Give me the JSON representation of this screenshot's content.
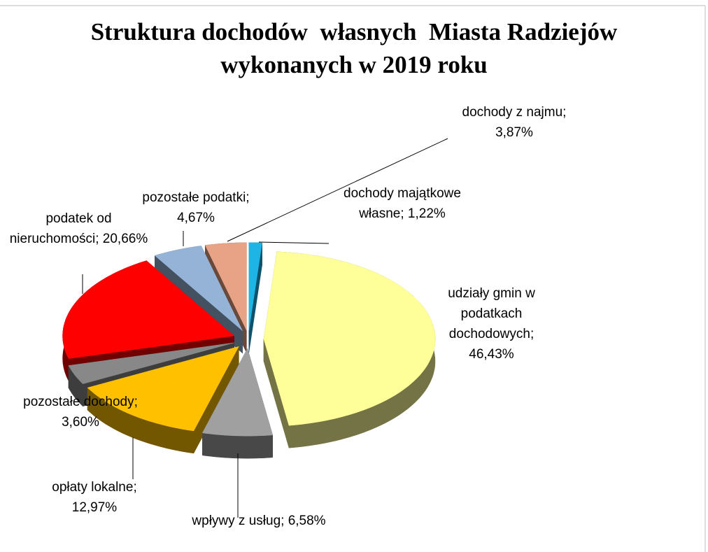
{
  "chart_data": {
    "type": "pie",
    "title": "Struktura dochodów  własnych  Miasta Radziejów wykonanych w 2019 roku",
    "categories": [
      "dochody majątkowe własne",
      "udziały gmin w podatkach dochodowych",
      "wpływy z usług",
      "opłaty lokalne",
      "pozostałe dochody",
      "podatek od nieruchomości",
      "pozostałe podatki",
      "dochody z najmu"
    ],
    "values": [
      1.22,
      46.43,
      6.58,
      12.97,
      3.6,
      20.66,
      4.67,
      3.87
    ],
    "value_labels": [
      "1,22%",
      "46,43%",
      "6,58%",
      "12,97%",
      "3,60%",
      "20,66%",
      "4,67%",
      "3,87%"
    ],
    "label_separator": "; ",
    "colors": [
      "#1fb4e6",
      "#ffff99",
      "#a0a0a0",
      "#ffc000",
      "#888888",
      "#ff0000",
      "#95b3d7",
      "#e8a285"
    ]
  }
}
